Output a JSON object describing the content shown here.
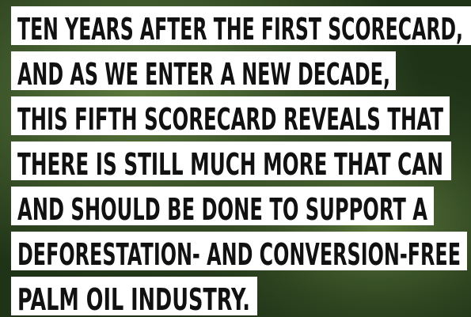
{
  "lines": [
    "TEN YEARS AFTER THE FIRST SCORECARD,",
    "AND AS WE ENTER A NEW DECADE,",
    "THIS FIFTH SCORECARD REVEALS THAT",
    "THERE IS STILL MUCH MORE THAT CAN",
    "AND SHOULD BE DONE TO SUPPORT A",
    "DEFORESTATION- AND CONVERSION-FREE",
    "PALM OIL INDUSTRY."
  ]
}
